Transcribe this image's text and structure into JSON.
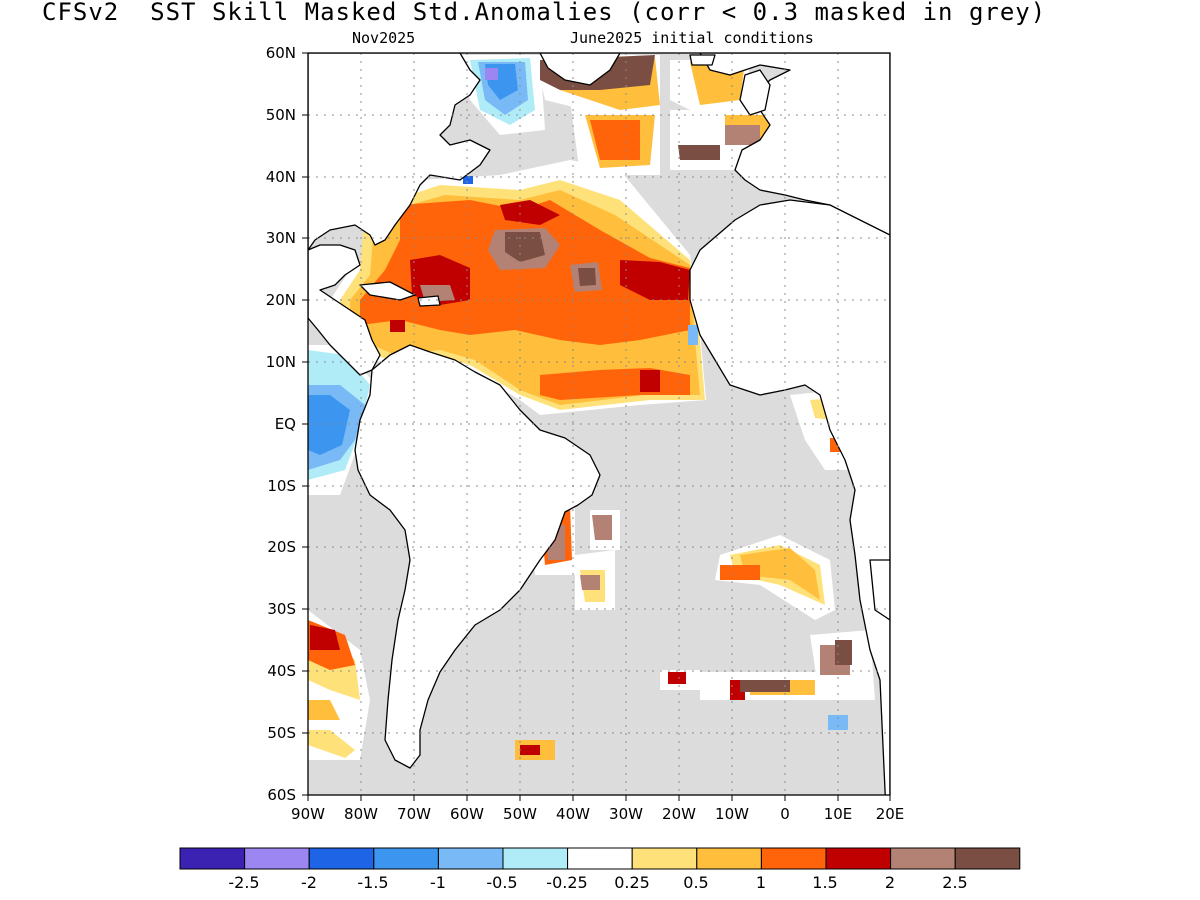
{
  "title": "CFSv2  SST Skill Masked Std.Anomalies (corr < 0.3 masked in grey)",
  "subtitle_left": "Nov2025",
  "subtitle_right": "June2025 initial conditions",
  "colors": {
    "land": "#ffffff",
    "ocean_masked": "#dcdcdc",
    "coast": "#000000",
    "grid": "#8c8c8c"
  },
  "axes": {
    "lat_labels": [
      "60N",
      "50N",
      "40N",
      "30N",
      "20N",
      "10N",
      "EQ",
      "10S",
      "20S",
      "30S",
      "40S",
      "50S",
      "60S"
    ],
    "lon_labels": [
      "90W",
      "80W",
      "70W",
      "60W",
      "50W",
      "40W",
      "30W",
      "20W",
      "10W",
      "0",
      "10E",
      "20E"
    ]
  },
  "colorbar": {
    "colors": [
      "#3b22b3",
      "#9b86f2",
      "#1e64e6",
      "#3c96f0",
      "#78b9f6",
      "#b0ecf8",
      "#ffffff",
      "#ffe17a",
      "#ffbe3c",
      "#ff640a",
      "#c00000",
      "#b38274",
      "#7a4e42"
    ],
    "labels": [
      "-2.5",
      "-2",
      "-1.5",
      "-1",
      "-0.5",
      "-0.25",
      "0.25",
      "0.5",
      "1",
      "1.5",
      "2",
      "2.5"
    ]
  }
}
